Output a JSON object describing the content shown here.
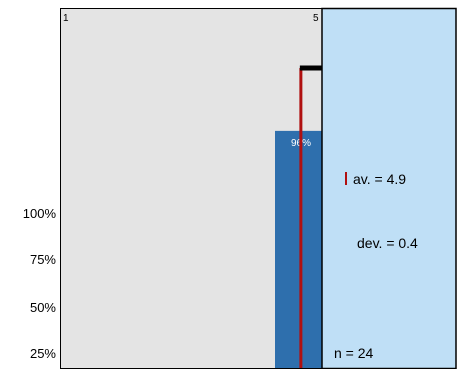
{
  "chart_data": {
    "type": "bar",
    "scale": {
      "min_label": "1",
      "max_label": "5"
    },
    "y_ticks": [
      "100%",
      "75%",
      "50%",
      "25%"
    ],
    "bars": [
      {
        "value_label": "96%",
        "share": 0.96
      }
    ],
    "stats": {
      "mean_label": "av. = 4.9",
      "mean": 4.9,
      "deviation_label": "dev. = 0.4",
      "deviation": 0.4,
      "count_label": "n = 24",
      "n": 24
    },
    "colors": {
      "plot_background": "#e4e4e4",
      "bar": "#2e6fad",
      "bar_label": "#ffffff",
      "mean_line": "#b01010",
      "deviation_bar": "#000000",
      "stats_panel": "#bfdff6",
      "border": "#000000"
    }
  }
}
